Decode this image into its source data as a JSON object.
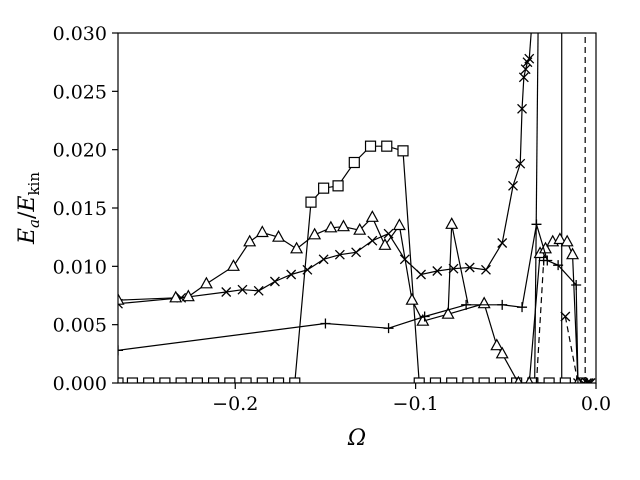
{
  "chart_data": {
    "type": "line",
    "xlabel": "Ω",
    "ylabel": {
      "main": "E",
      "sub1": "a",
      "sep": "/",
      "main2": "E",
      "sub2": "kin"
    },
    "xlim": [
      -0.265,
      0.0
    ],
    "ylim": [
      0.0,
      0.03
    ],
    "x_ticks": [
      -0.2,
      -0.1,
      0.0
    ],
    "x_tick_labels": [
      "−0.2",
      "−0.1",
      "0.0"
    ],
    "y_ticks": [
      0.0,
      0.005,
      0.01,
      0.015,
      0.02,
      0.025,
      0.03
    ],
    "y_tick_labels": [
      "0.000",
      "0.005",
      "0.010",
      "0.015",
      "0.020",
      "0.025",
      "0.030"
    ],
    "grid": false,
    "series": [
      {
        "marker": "square",
        "line": "solid",
        "color": "#000000",
        "x": [
          -0.265,
          -0.257,
          -0.248,
          -0.239,
          -0.23,
          -0.221,
          -0.212,
          -0.203,
          -0.194,
          -0.185,
          -0.176,
          -0.167,
          -0.158,
          -0.151,
          -0.143,
          -0.134,
          -0.125,
          -0.116,
          -0.107,
          -0.098,
          -0.089,
          -0.08,
          -0.071,
          -0.062,
          -0.053,
          -0.044,
          -0.035,
          -0.026,
          -0.017,
          -0.008
        ],
        "y": [
          0,
          0,
          0,
          0,
          0,
          0,
          0,
          0,
          0,
          0,
          0,
          0,
          0.0155,
          0.0167,
          0.0169,
          0.0189,
          0.0203,
          0.0203,
          0.0199,
          0,
          0,
          0,
          0,
          0,
          0,
          0,
          0,
          0,
          0,
          0
        ],
        "extra_line": [
          [
            -0.034,
            0
          ],
          [
            -0.032,
            0.032
          ]
        ]
      },
      {
        "marker": "x",
        "line": "solid",
        "color": "#000000",
        "x": [
          -0.265,
          -0.23,
          -0.205,
          -0.196,
          -0.187,
          -0.178,
          -0.169,
          -0.16,
          -0.151,
          -0.142,
          -0.133,
          -0.124,
          -0.115,
          -0.106,
          -0.097,
          -0.088,
          -0.079,
          -0.07,
          -0.061,
          -0.052,
          -0.046,
          -0.042,
          -0.041,
          -0.04,
          -0.039,
          -0.038,
          -0.037
        ],
        "y": [
          0.0068,
          0.0073,
          0.0078,
          0.008,
          0.0079,
          0.0087,
          0.0093,
          0.0097,
          0.0106,
          0.011,
          0.0112,
          0.0122,
          0.0128,
          0.0106,
          0.0093,
          0.0096,
          0.0098,
          0.0099,
          0.0097,
          0.012,
          0.0169,
          0.0188,
          0.0235,
          0.0262,
          0.0269,
          0.0275,
          0.0278
        ],
        "extra_line": [
          [
            -0.037,
            0.0278
          ],
          [
            -0.035,
            0.032
          ]
        ],
        "tail": {
          "line": "dashed",
          "x": [
            -0.017,
            -0.01,
            -0.007,
            -0.005,
            -0.004,
            -0.003
          ],
          "y": [
            0.0057,
            0.0,
            0.0,
            0.0,
            0.0,
            0.0
          ]
        }
      },
      {
        "marker": "triangle",
        "line": "solid",
        "color": "#000000",
        "x": [
          -0.265,
          -0.233,
          -0.226,
          -0.216,
          -0.201,
          -0.192,
          -0.185,
          -0.176,
          -0.166,
          -0.156,
          -0.147,
          -0.14,
          -0.131,
          -0.124,
          -0.117,
          -0.109,
          -0.102,
          -0.096,
          -0.082,
          -0.062,
          -0.055,
          -0.052,
          -0.043,
          -0.037,
          -0.031,
          -0.028,
          -0.024,
          -0.02,
          -0.016,
          -0.013,
          -0.01
        ],
        "y": [
          0.0071,
          0.0073,
          0.0074,
          0.0085,
          0.01,
          0.0121,
          0.0129,
          0.0125,
          0.0115,
          0.0127,
          0.0133,
          0.0134,
          0.0131,
          0.0142,
          0.0118,
          0.0135,
          0.0071,
          0.0053,
          0.0059,
          0.0068,
          0.0032,
          0.0025,
          0.0,
          0.0,
          0.0111,
          0.0115,
          0.0121,
          0.0123,
          0.0121,
          0.011,
          0.0
        ],
        "extra_line": [
          [
            -0.082,
            0.0059
          ],
          [
            -0.08,
            0.0136
          ],
          [
            -0.071,
            0.0068
          ]
        ]
      },
      {
        "marker": "plus",
        "line": "solid",
        "color": "#000000",
        "x": [
          -0.265,
          -0.15,
          -0.115,
          -0.095,
          -0.072,
          -0.052,
          -0.041,
          -0.033,
          -0.027,
          -0.021,
          -0.011
        ],
        "y": [
          0.0028,
          0.0051,
          0.0047,
          0.0057,
          0.0067,
          0.0067,
          0.0065,
          0.0136,
          0.0105,
          0.0101,
          0.0084
        ],
        "extra_line": [
          [
            -0.011,
            0.0084
          ],
          [
            -0.01,
            0.0
          ]
        ],
        "tail": {
          "line": "dashed",
          "x": [
            -0.033,
            -0.029
          ],
          "y": [
            0.0,
            0.0105
          ]
        }
      }
    ],
    "vertical_lines": [
      {
        "x": -0.019,
        "line": "solid",
        "y_from": 0.0,
        "y_to": 0.032
      },
      {
        "x": -0.006,
        "line": "dashed",
        "y_from": 0.0,
        "y_to": 0.032
      }
    ]
  }
}
